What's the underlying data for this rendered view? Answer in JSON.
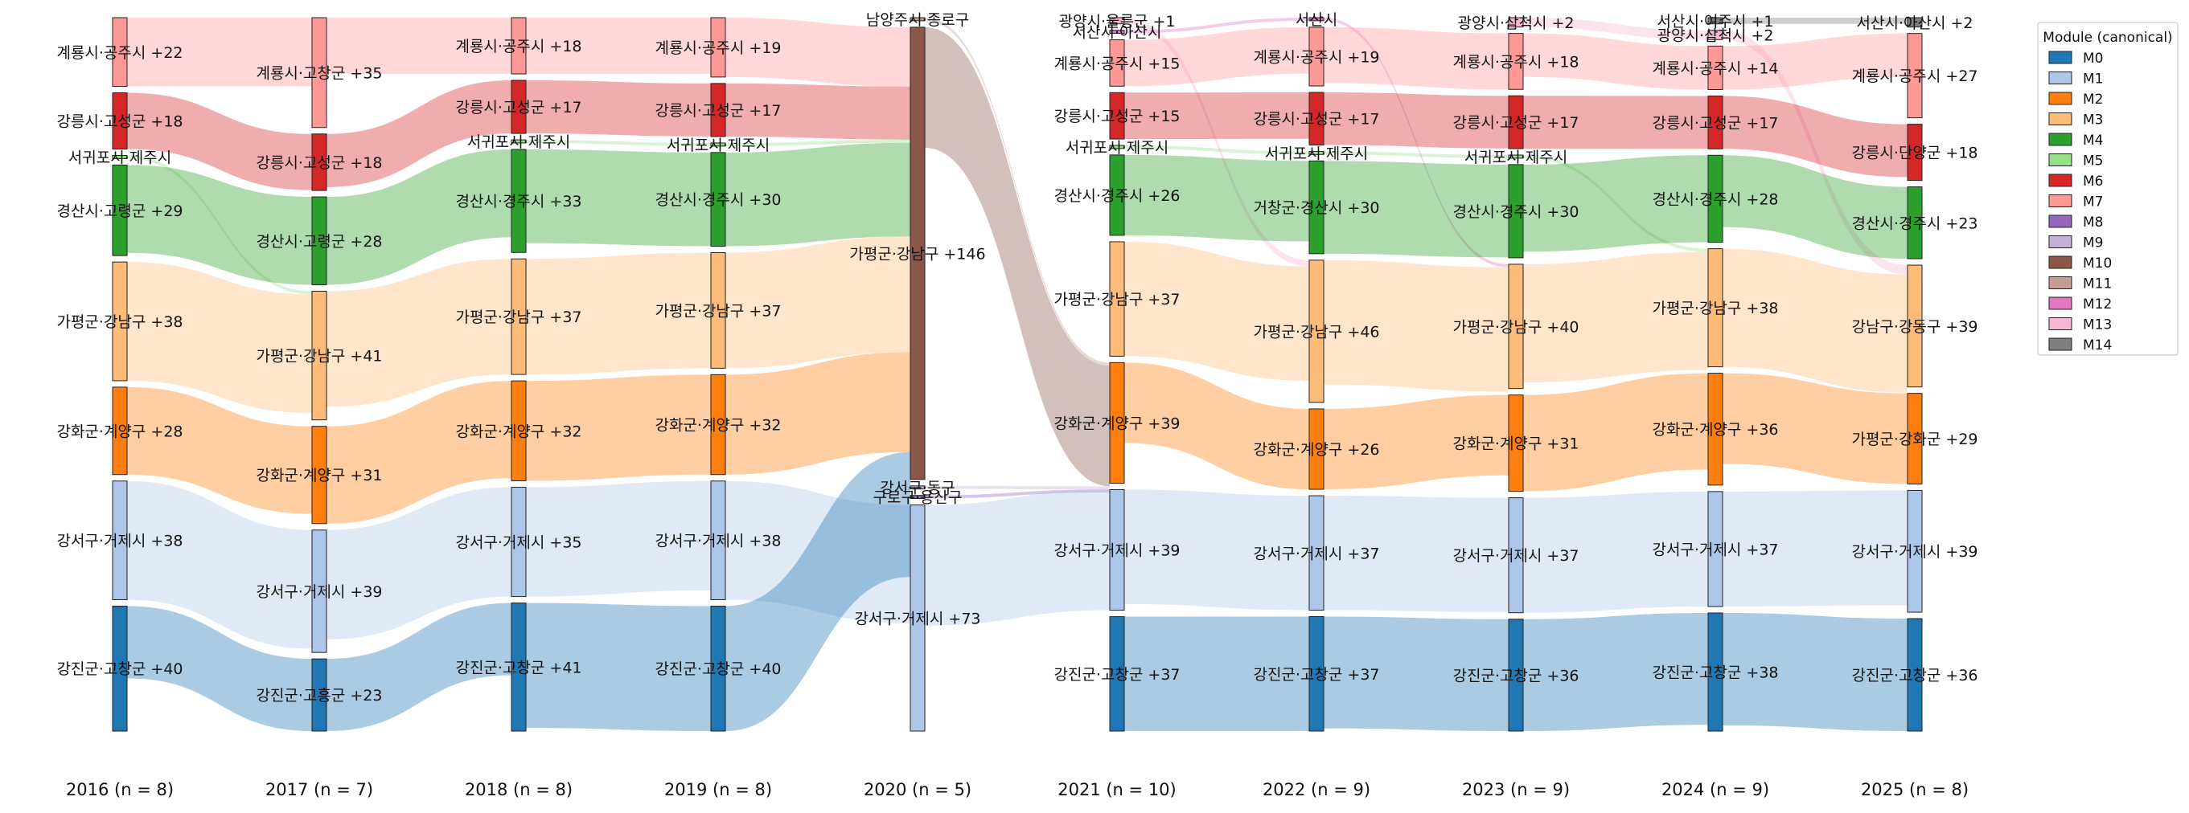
{
  "chart_data": {
    "type": "sankey",
    "title": "",
    "legend": {
      "title": "Module (canonical)",
      "placement": "top-right",
      "entries": [
        {
          "name": "M0",
          "color": "#1f77b4"
        },
        {
          "name": "M1",
          "color": "#aec7e8"
        },
        {
          "name": "M2",
          "color": "#ff7f0e"
        },
        {
          "name": "M3",
          "color": "#ffbb78"
        },
        {
          "name": "M4",
          "color": "#2ca02c"
        },
        {
          "name": "M5",
          "color": "#98df8a"
        },
        {
          "name": "M6",
          "color": "#d62728"
        },
        {
          "name": "M7",
          "color": "#ff9896"
        },
        {
          "name": "M8",
          "color": "#9467bd"
        },
        {
          "name": "M9",
          "color": "#c5b0d5"
        },
        {
          "name": "M10",
          "color": "#8c564b"
        },
        {
          "name": "M11",
          "color": "#c49c94"
        },
        {
          "name": "M12",
          "color": "#e377c2"
        },
        {
          "name": "M13",
          "color": "#f7b6d2"
        },
        {
          "name": "M14",
          "color": "#7f7f7f"
        }
      ]
    },
    "years": [
      {
        "label": "2016 (n = 8)",
        "nodes": [
          {
            "label": "계룡시·공주시 +22",
            "module": "M7",
            "size": 22
          },
          {
            "label": "강릉시·고성군 +18",
            "module": "M6",
            "size": 18
          },
          {
            "label": "서귀포시·제주시",
            "module": "M5",
            "size": 1
          },
          {
            "label": "경산시·고령군 +29",
            "module": "M4",
            "size": 29
          },
          {
            "label": "가평군·강남구 +38",
            "module": "M3",
            "size": 38
          },
          {
            "label": "강화군·계양구 +28",
            "module": "M2",
            "size": 28
          },
          {
            "label": "강서구·거제시 +38",
            "module": "M1",
            "size": 38
          },
          {
            "label": "강진군·고창군 +40",
            "module": "M0",
            "size": 40
          }
        ]
      },
      {
        "label": "2017 (n = 7)",
        "nodes": [
          {
            "label": "계룡시·고창군 +35",
            "module": "M7",
            "size": 35
          },
          {
            "label": "강릉시·고성군 +18",
            "module": "M6",
            "size": 18
          },
          {
            "label": "경산시·고령군 +28",
            "module": "M4",
            "size": 28
          },
          {
            "label": "가평군·강남구 +41",
            "module": "M3",
            "size": 41
          },
          {
            "label": "강화군·계양구 +31",
            "module": "M2",
            "size": 31
          },
          {
            "label": "강서구·거제시 +39",
            "module": "M1",
            "size": 39
          },
          {
            "label": "강진군·고흥군 +23",
            "module": "M0",
            "size": 23
          }
        ]
      },
      {
        "label": "2018 (n = 8)",
        "nodes": [
          {
            "label": "계룡시·공주시 +18",
            "module": "M7",
            "size": 18
          },
          {
            "label": "강릉시·고성군 +17",
            "module": "M6",
            "size": 17
          },
          {
            "label": "서귀포시·제주시",
            "module": "M5",
            "size": 1
          },
          {
            "label": "경산시·경주시 +33",
            "module": "M4",
            "size": 33
          },
          {
            "label": "가평군·강남구 +37",
            "module": "M3",
            "size": 37
          },
          {
            "label": "강화군·계양구 +32",
            "module": "M2",
            "size": 32
          },
          {
            "label": "강서구·거제시 +35",
            "module": "M1",
            "size": 35
          },
          {
            "label": "강진군·고창군 +41",
            "module": "M0",
            "size": 41
          }
        ]
      },
      {
        "label": "2019 (n = 8)",
        "nodes": [
          {
            "label": "계룡시·공주시 +19",
            "module": "M7",
            "size": 19
          },
          {
            "label": "강릉시·고성군 +17",
            "module": "M6",
            "size": 17
          },
          {
            "label": "서귀포시·제주시",
            "module": "M5",
            "size": 1
          },
          {
            "label": "경산시·경주시 +30",
            "module": "M4",
            "size": 30
          },
          {
            "label": "가평군·강남구 +37",
            "module": "M3",
            "size": 37
          },
          {
            "label": "강화군·계양구 +32",
            "module": "M2",
            "size": 32
          },
          {
            "label": "강서구·거제시 +38",
            "module": "M1",
            "size": 38
          },
          {
            "label": "강진군·고창군 +40",
            "module": "M0",
            "size": 40
          }
        ]
      },
      {
        "label": "2020 (n = 5)",
        "nodes": [
          {
            "label": "남양주시·종로구",
            "module": "M11",
            "size": 1
          },
          {
            "label": "가평군·강남구 +146",
            "module": "M10",
            "size": 146
          },
          {
            "label": "강서구·동구",
            "module": "M9",
            "size": 1
          },
          {
            "label": "구로구·용산구",
            "module": "M8",
            "size": 1
          },
          {
            "label": "강서구·거제시 +73",
            "module": "M1",
            "size": 73
          }
        ]
      },
      {
        "label": "2021 (n = 10)",
        "nodes": [
          {
            "label": "광양시·울릉군 +1",
            "module": "M13",
            "size": 2
          },
          {
            "label": "서산시·아산시",
            "module": "M12",
            "size": 1
          },
          {
            "label": "계룡시·공주시 +15",
            "module": "M7",
            "size": 15
          },
          {
            "label": "강릉시·고성군 +15",
            "module": "M6",
            "size": 15
          },
          {
            "label": "서귀포시·제주시",
            "module": "M5",
            "size": 1
          },
          {
            "label": "경산시·경주시 +26",
            "module": "M4",
            "size": 26
          },
          {
            "label": "가평군·강남구 +37",
            "module": "M3",
            "size": 37
          },
          {
            "label": "강화군·계양구 +39",
            "module": "M2",
            "size": 39
          },
          {
            "label": "강서구·거제시 +39",
            "module": "M1",
            "size": 39
          },
          {
            "label": "강진군·고창군 +37",
            "module": "M0",
            "size": 37
          }
        ]
      },
      {
        "label": "2022 (n = 9)",
        "nodes": [
          {
            "label": "서산시",
            "module": "M12",
            "size": 1
          },
          {
            "label": "계룡시·공주시 +19",
            "module": "M7",
            "size": 19
          },
          {
            "label": "강릉시·고성군 +17",
            "module": "M6",
            "size": 17
          },
          {
            "label": "서귀포시·제주시",
            "module": "M5",
            "size": 1
          },
          {
            "label": "거창군·경산시 +30",
            "module": "M4",
            "size": 30
          },
          {
            "label": "가평군·강남구 +46",
            "module": "M3",
            "size": 46
          },
          {
            "label": "강화군·계양구 +26",
            "module": "M2",
            "size": 26
          },
          {
            "label": "강서구·거제시 +37",
            "module": "M1",
            "size": 37
          },
          {
            "label": "강진군·고창군 +37",
            "module": "M0",
            "size": 37
          }
        ]
      },
      {
        "label": "2023 (n = 9)",
        "nodes": [
          {
            "label": "광양시·삼척시 +2",
            "module": "M13",
            "size": 3
          },
          {
            "label": "계룡시·공주시 +18",
            "module": "M7",
            "size": 18
          },
          {
            "label": "강릉시·고성군 +17",
            "module": "M6",
            "size": 17
          },
          {
            "label": "서귀포시·제주시",
            "module": "M5",
            "size": 1
          },
          {
            "label": "경산시·경주시 +30",
            "module": "M4",
            "size": 30
          },
          {
            "label": "가평군·강남구 +40",
            "module": "M3",
            "size": 40
          },
          {
            "label": "강화군·계양구 +31",
            "module": "M2",
            "size": 31
          },
          {
            "label": "강서구·거제시 +37",
            "module": "M1",
            "size": 37
          },
          {
            "label": "강진군·고창군 +36",
            "module": "M0",
            "size": 36
          }
        ]
      },
      {
        "label": "2024 (n = 9)",
        "nodes": [
          {
            "label": "서산시·여주시 +1",
            "module": "M14",
            "size": 2
          },
          {
            "label": "광양시·삼척시 +2",
            "module": "M13",
            "size": 3
          },
          {
            "label": "계룡시·공주시 +14",
            "module": "M7",
            "size": 14
          },
          {
            "label": "강릉시·고성군 +17",
            "module": "M6",
            "size": 17
          },
          {
            "label": "경산시·경주시 +28",
            "module": "M4",
            "size": 28
          },
          {
            "label": "가평군·강남구 +38",
            "module": "M3",
            "size": 38
          },
          {
            "label": "강화군·계양구 +36",
            "module": "M2",
            "size": 36
          },
          {
            "label": "강서구·거제시 +37",
            "module": "M1",
            "size": 37
          },
          {
            "label": "강진군·고창군 +38",
            "module": "M0",
            "size": 38
          }
        ]
      },
      {
        "label": "2025 (n = 8)",
        "nodes": [
          {
            "label": "서산시·아산시 +2",
            "module": "M14",
            "size": 3
          },
          {
            "label": "계룡시·공주시 +27",
            "module": "M7",
            "size": 27
          },
          {
            "label": "강릉시·단양군 +18",
            "module": "M6",
            "size": 18
          },
          {
            "label": "경산시·경주시 +23",
            "module": "M4",
            "size": 23
          },
          {
            "label": "강남구·강동구 +39",
            "module": "M3",
            "size": 39
          },
          {
            "label": "가평군·강화군 +29",
            "module": "M2",
            "size": 29
          },
          {
            "label": "강서구·거제시 +39",
            "module": "M1",
            "size": 39
          },
          {
            "label": "강진군·고창군 +36",
            "module": "M0",
            "size": 36
          }
        ]
      }
    ]
  }
}
